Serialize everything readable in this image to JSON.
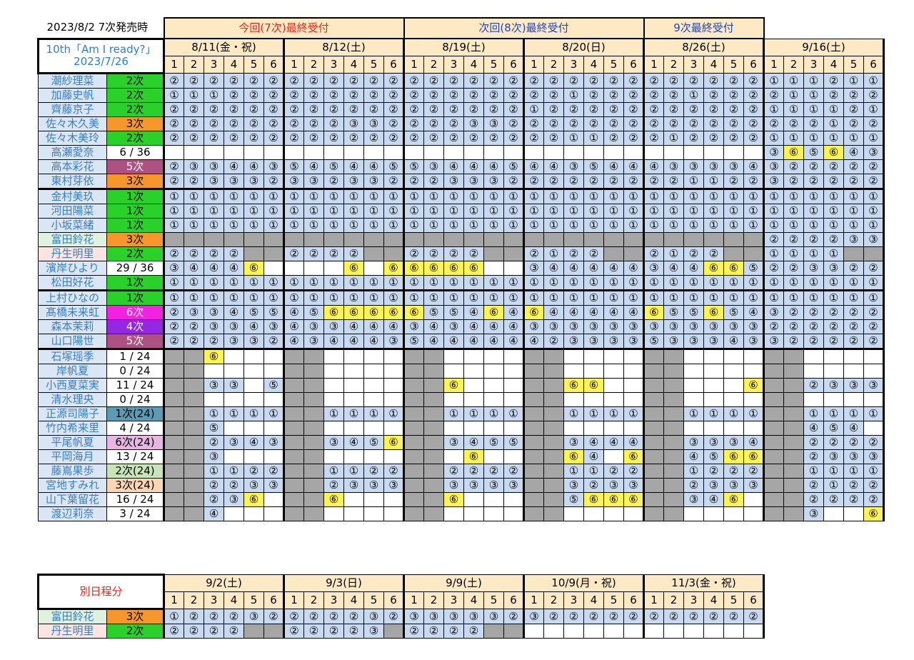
{
  "header": {
    "stamp": "2023/8/2 7次発売時",
    "groups": [
      "今回(7次)最終受付",
      "次回(8次)最終受付",
      "9次最終受付"
    ],
    "corner_line1": "10th「Am I ready?」",
    "corner_line2": "2023/7/26"
  },
  "dates": [
    "8/11(金・祝)",
    "8/12(土)",
    "8/19(土)",
    "8/20(日)",
    "8/26(土)",
    "9/16(土)"
  ],
  "part_numbers": [
    "1",
    "2",
    "3",
    "4",
    "5",
    "6"
  ],
  "members": [
    {
      "name": "潮紗理菜",
      "status": "2次",
      "sc": "g",
      "cells": "222222 222222 222222 222222 222222 111211"
    },
    {
      "name": "加藤史帆",
      "status": "2次",
      "sc": "g",
      "cells": "111222 222222 222222 221222 221222 211222"
    },
    {
      "name": "齊藤京子",
      "status": "2次",
      "sc": "g",
      "cells": "222222 222222 222222 122222 222222 111121"
    },
    {
      "name": "佐々木久美",
      "status": "3次",
      "sc": "o",
      "cells": "222222 222332 222332 222222 222222 222122"
    },
    {
      "name": "佐々木美玲",
      "status": "2次",
      "sc": "g",
      "cells": "222222 222222 222222 221122 212222 111111"
    },
    {
      "name": "高瀬愛奈",
      "status": "6 / 36",
      "sc": "",
      "cells": "______ ______ ______ ______ ______ 365643"
    },
    {
      "name": "高本彩花",
      "status": "5次",
      "sc": "p",
      "cells": "233443 545445 534445 443544 433334 322222"
    },
    {
      "name": "東村芽依",
      "status": "3次",
      "sc": "o",
      "cells": "223332 332332 223332 222222 221122 322222"
    },
    {
      "name": "金村美玖",
      "status": "1次",
      "sc": "g",
      "sep": true,
      "cells": "111111 111111 111111 111111 111111 111111"
    },
    {
      "name": "河田陽菜",
      "status": "1次",
      "sc": "g",
      "cells": "111111 111111 111111 111111 111111 111111"
    },
    {
      "name": "小坂菜緒",
      "status": "1次",
      "sc": "g",
      "cells": "111111 111111 111111 111111 111111 111111"
    },
    {
      "name": "富田鈴花",
      "status": "3次",
      "sc": "o",
      "nc": "gr",
      "cells": "gggggg gggggg gggggg gggggg gggggg 222233"
    },
    {
      "name": "丹生明里",
      "status": "2次",
      "sc": "g",
      "nc": "pk",
      "cells": "2222gg 2222gg 2222gg 2122gg 2122gg 1111gg"
    },
    {
      "name": "濱岸ひより",
      "status": "29 / 36",
      "sc": "",
      "cells": "34446_ ___6_6 6666__ 344444 344665 223322"
    },
    {
      "name": "松田好花",
      "status": "1次",
      "sc": "g",
      "cells": "111111 111111 111111 111111 111111 111111"
    },
    {
      "name": "上村ひなの",
      "status": "1次",
      "sc": "g",
      "sep": true,
      "cells": "111111 111111 111111 111111 111111 111111"
    },
    {
      "name": "髙橋未来虹",
      "status": "6次",
      "sc": "m",
      "cells": "233455 456666 655464 644444 655654 322222"
    },
    {
      "name": "森本茉莉",
      "status": "4次",
      "sc": "v",
      "cells": "223343 433444 343444 333333 333333 222222"
    },
    {
      "name": "山口陽世",
      "status": "5次",
      "sc": "p",
      "cells": "222332 434443 544444 423333 533343 322222"
    },
    {
      "name": "石塚瑶季",
      "status": "1 / 24",
      "sc": "",
      "sep": true,
      "cells": "gg6___ gg____ gg____ gg____ gg____ gg____"
    },
    {
      "name": "岸帆夏",
      "status": "0 / 24",
      "sc": "",
      "cells": "gg____ gg____ gg____ gg____ gg____ gg____"
    },
    {
      "name": "小西夏菜実",
      "status": "11 / 24",
      "sc": "",
      "cells": "gg33_5 gg____ gg6___ gg66__ gg___6 gg2333"
    },
    {
      "name": "清水理央",
      "status": "0 / 24",
      "sc": "",
      "cells": "gg____ gg____ gg____ gg____ gg____ gg____"
    },
    {
      "name": "正源司陽子",
      "status": "1次(24)",
      "sc": "t",
      "cells": "gg1111 gg1111 gg1111 gg1111 gg1111 gg1111"
    },
    {
      "name": "竹内希来里",
      "status": "4 / 24",
      "sc": "",
      "cells": "gg5___ gg____ gg____ gg____ gg____ gg454_"
    },
    {
      "name": "平尾帆夏",
      "status": "6次(24)",
      "sc": "l",
      "cells": "gg2343 gg3456 gg3455 gg3444 gg3334 gg2222"
    },
    {
      "name": "平岡海月",
      "status": "13 / 24",
      "sc": "",
      "cells": "gg3___ gg____ gg_6__ gg64_6 gg4566 gg2333"
    },
    {
      "name": "藤嶌果歩",
      "status": "2次(24)",
      "sc": "lg",
      "cells": "gg1122 gg1122 gg2222 gg1122 gg1222 gg1111"
    },
    {
      "name": "宮地すみれ",
      "status": "3次(24)",
      "sc": "pe",
      "cells": "gg2233 gg2333 gg3333 gg3233 gg2333 gg2122"
    },
    {
      "name": "山下葉留花",
      "status": "16 / 24",
      "sc": "",
      "cells": "gg236_ gg6___ gg6___ gg5666 gg346_ gg2222"
    },
    {
      "name": "渡辺莉奈",
      "status": "3 / 24",
      "sc": "",
      "cells": "gg4___ gg____ gg____ gg____ gg____ gg3__6"
    }
  ],
  "separate": {
    "title": "別日程分",
    "dates": [
      "9/2(土)",
      "9/3(日)",
      "9/9(土)",
      "10/9(月・祝)",
      "11/3(金・祝)"
    ],
    "members": [
      {
        "name": "富田鈴花",
        "status": "3次",
        "sc": "o",
        "nc": "gr",
        "cells": "122232 222232 333332 322222 222222"
      },
      {
        "name": "丹生明里",
        "status": "2次",
        "sc": "g",
        "nc": "pk",
        "cells": "2222gg 22223g 2222gg ______ ______"
      }
    ]
  },
  "glyphs": {
    "1": "①",
    "2": "②",
    "3": "③",
    "4": "④",
    "5": "⑤",
    "6": "⑥"
  }
}
